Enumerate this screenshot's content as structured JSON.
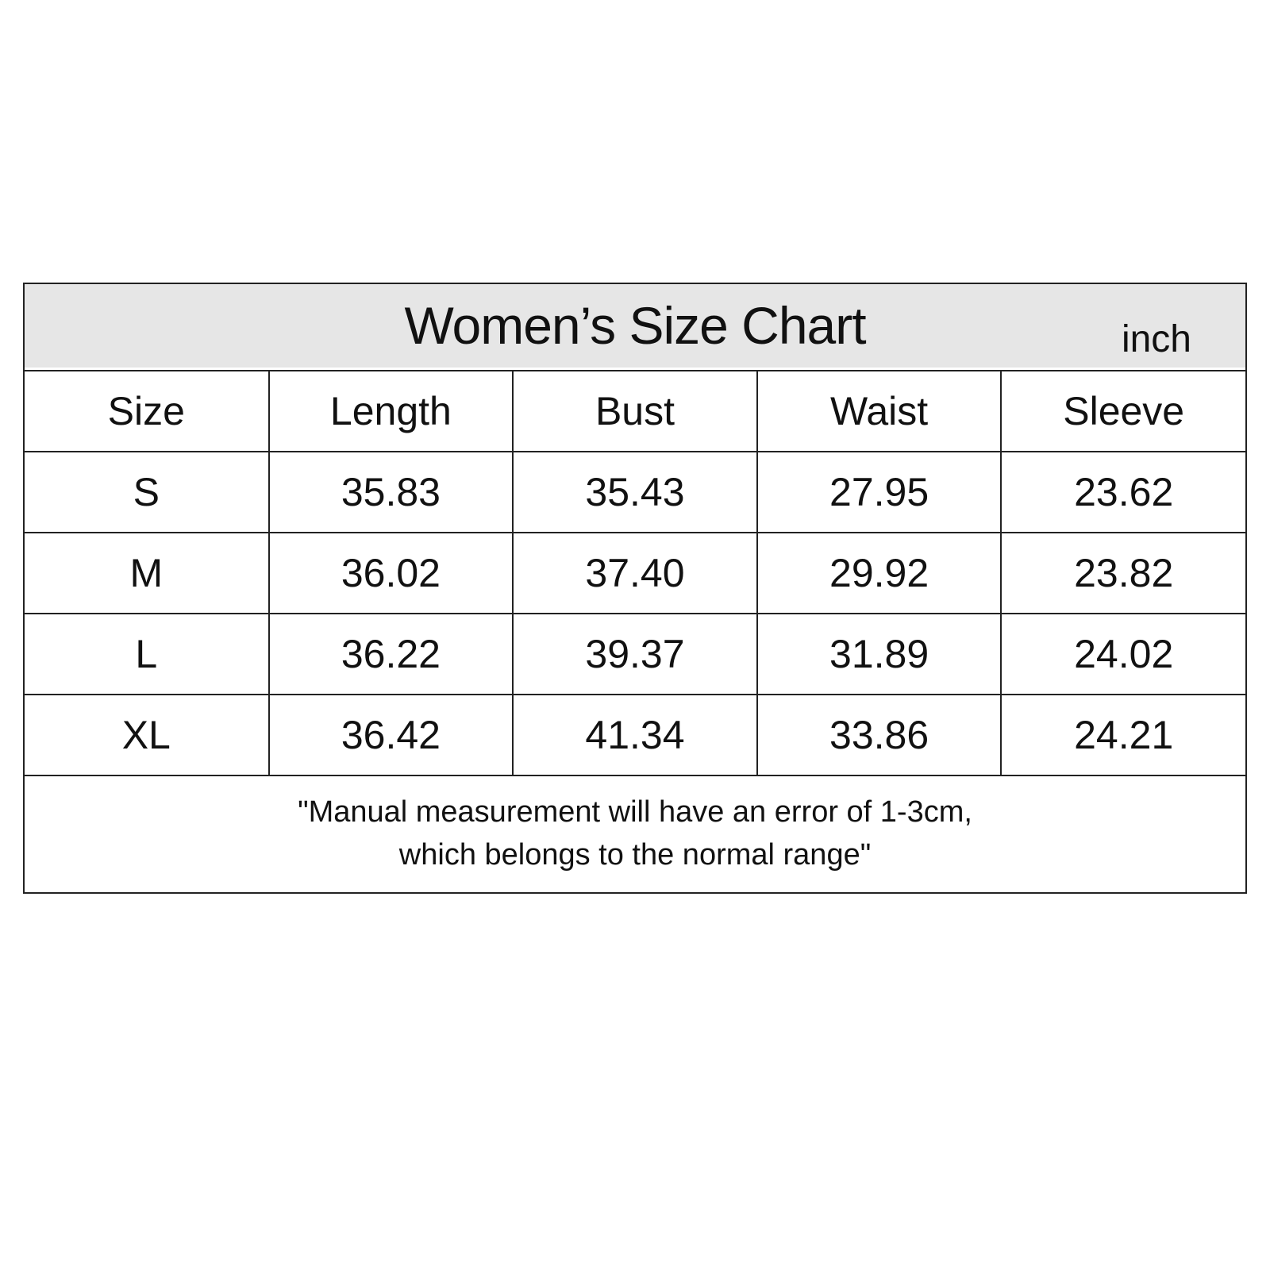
{
  "title": "Women’s Size Chart",
  "unit": "inch",
  "columns": [
    "Size",
    "Length",
    "Bust",
    "Waist",
    "Sleeve"
  ],
  "rows": [
    [
      "S",
      "35.83",
      "35.43",
      "27.95",
      "23.62"
    ],
    [
      "M",
      "36.02",
      "37.40",
      "29.92",
      "23.82"
    ],
    [
      "L",
      "36.22",
      "39.37",
      "31.89",
      "24.02"
    ],
    [
      "XL",
      "36.42",
      "41.34",
      "33.86",
      "24.21"
    ]
  ],
  "note": {
    "line1": "\"Manual measurement will have an error of 1-3cm,",
    "line2": "which belongs to the normal range\""
  },
  "colors": {
    "title_bar": "#e6e6e6",
    "border": "#222222"
  }
}
